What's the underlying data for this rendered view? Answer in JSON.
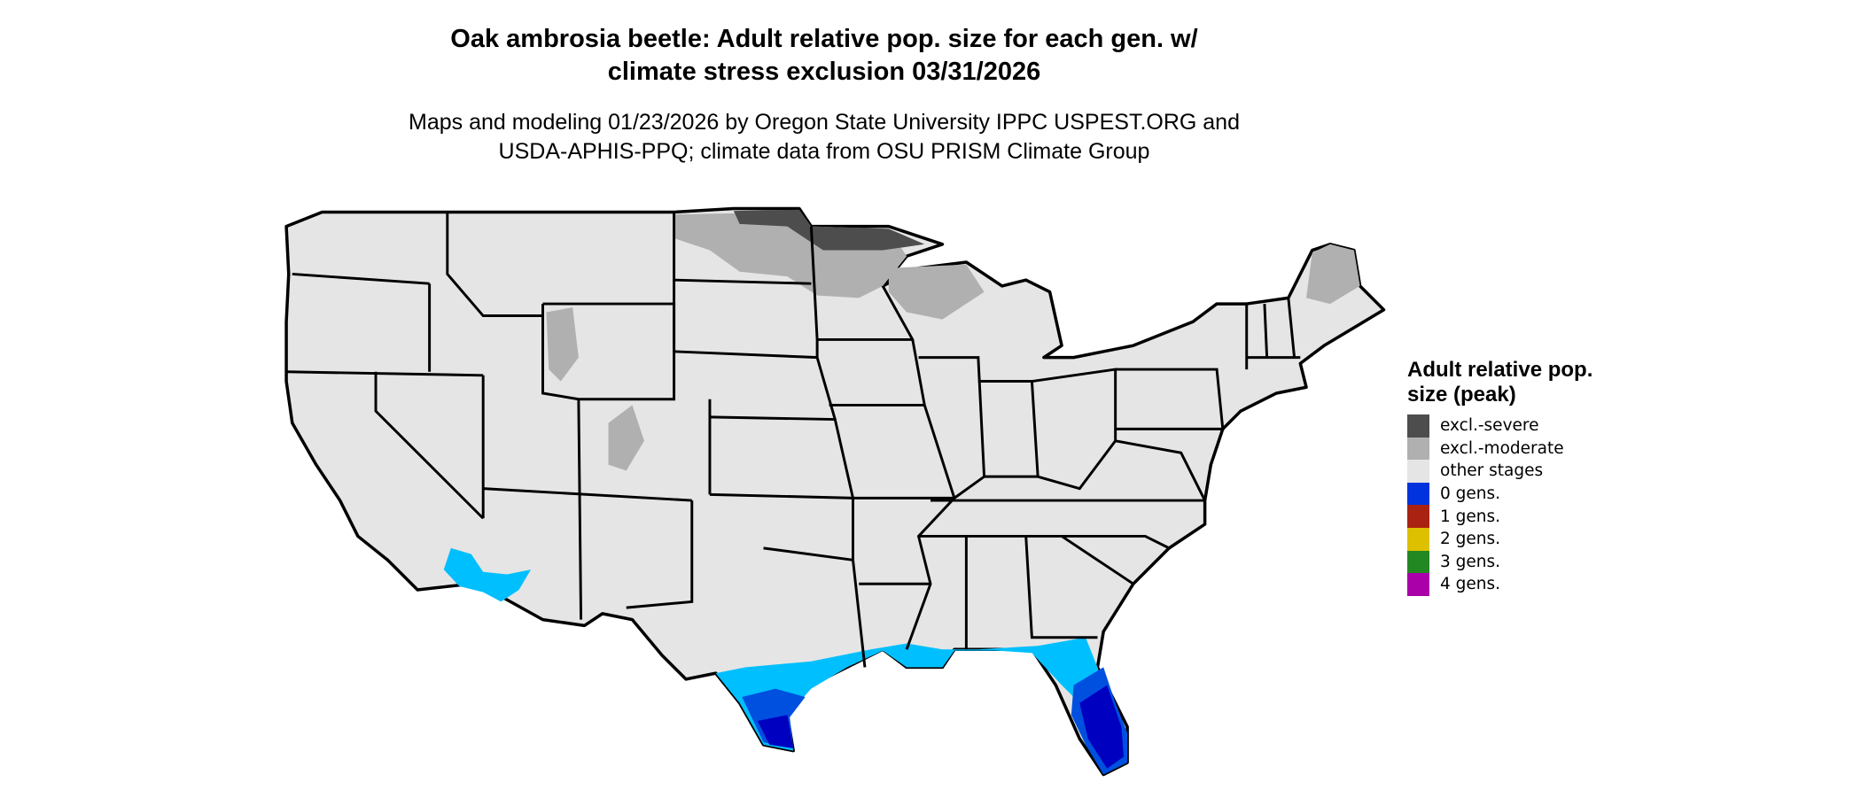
{
  "title_line1": "Oak ambrosia beetle: Adult relative pop. size for each gen. w/",
  "title_line2": "climate stress exclusion 03/31/2026",
  "subtitle_line1": "Maps and modeling 01/23/2026 by Oregon State University IPPC USPEST.ORG and",
  "subtitle_line2": "USDA-APHIS-PPQ; climate data from OSU PRISM Climate Group",
  "legend": {
    "title": "Adult relative pop. size (peak)",
    "items": [
      {
        "label": "excl.-severe",
        "color": "#4D4D4D"
      },
      {
        "label": "excl.-moderate",
        "color": "#B0B0B0"
      },
      {
        "label": "other stages",
        "color": "#E5E5E5"
      },
      {
        "label": "0 gens.",
        "color": "#0033DD"
      },
      {
        "label": "1 gens.",
        "color": "#AA2211"
      },
      {
        "label": "2 gens.",
        "color": "#DDC000"
      },
      {
        "label": "3 gens.",
        "color": "#228822"
      },
      {
        "label": "4 gens.",
        "color": "#AA00AA"
      }
    ]
  },
  "map_colors": {
    "land": "#E5E5E5",
    "excl_severe": "#4D4D4D",
    "excl_moderate": "#B0B0B0",
    "light_blue": "#00BFFF",
    "mid_blue": "#0050E0",
    "dark_blue": "#0000C0",
    "border": "#000000"
  }
}
